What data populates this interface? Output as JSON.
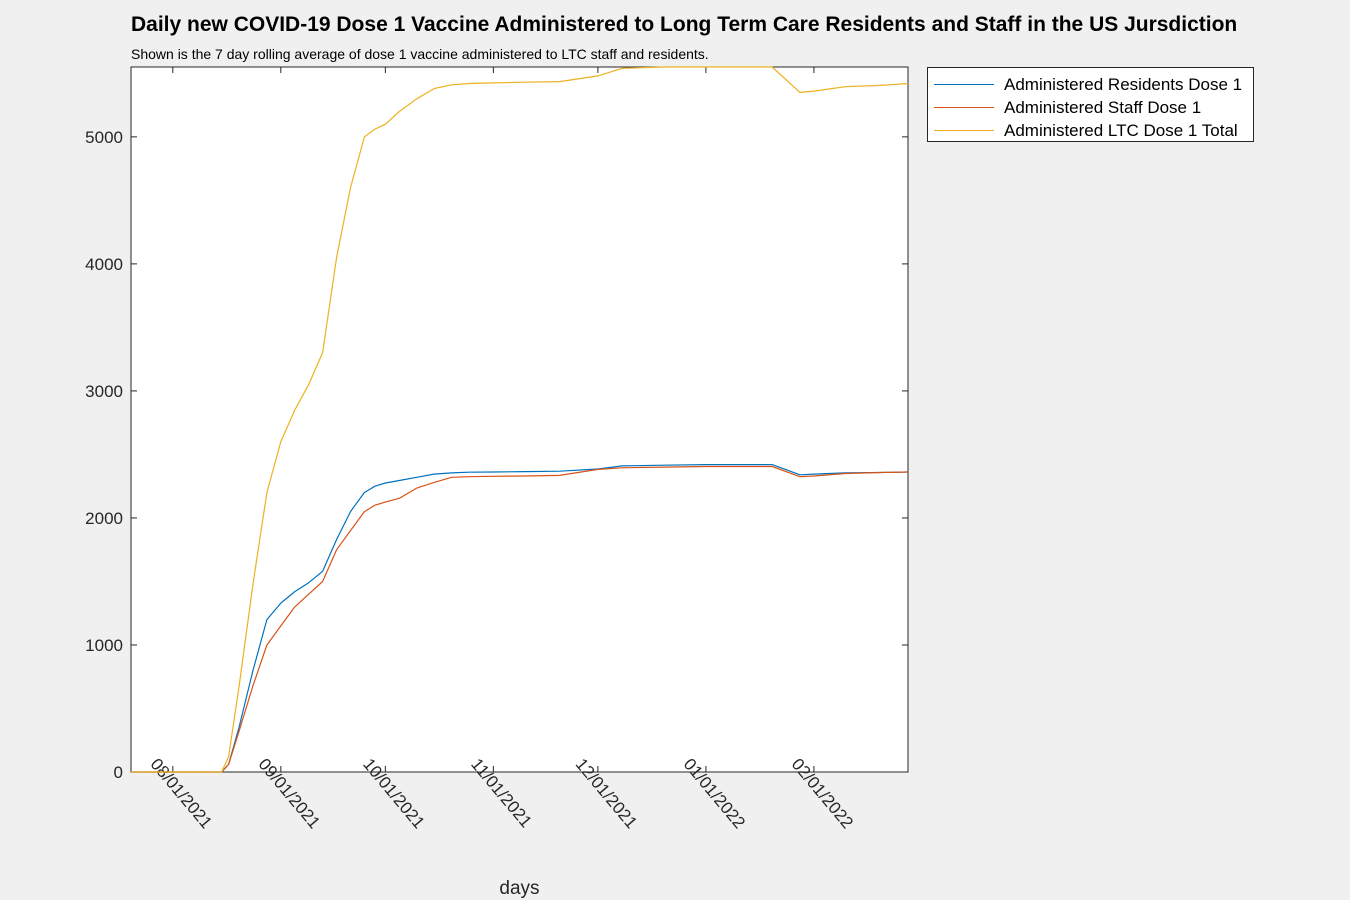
{
  "window": {
    "title": "Daily new COVID-19 Dose 1 Vaccine Administered to Long Term Care Residents and Staff in the US Jursdiction",
    "subtitle": "Shown is the 7 day rolling average of dose 1 vaccine administered to LTC staff and residents."
  },
  "chart_data": {
    "type": "line",
    "title": "Daily new COVID-19 Dose 1 Vaccine Administered to Long Term Care Residents and Staff in the US Jursdiction",
    "subtitle": "Shown is the 7 day rolling average of dose 1 vaccine administered to LTC staff and residents.",
    "xlabel": "days",
    "ylabel": "",
    "xlim": [
      "2021-07-20",
      "2022-02-28"
    ],
    "ylim": [
      0,
      5550
    ],
    "xticks": [
      "2021-08-01",
      "2021-09-01",
      "2021-10-01",
      "2021-11-01",
      "2021-12-01",
      "2022-01-01",
      "2022-02-01"
    ],
    "xtick_labels": [
      "08/01/2021",
      "09/01/2021",
      "10/01/2021",
      "11/01/2021",
      "12/01/2021",
      "01/01/2022",
      "02/01/2022"
    ],
    "yticks": [
      0,
      1000,
      2000,
      3000,
      4000,
      5000
    ],
    "ytick_labels": [
      "0",
      "1000",
      "2000",
      "3000",
      "4000",
      "5000"
    ],
    "grid": false,
    "legend_position": "outside-top-right",
    "x": [
      "2021-07-20",
      "2021-08-15",
      "2021-08-17",
      "2021-08-20",
      "2021-08-24",
      "2021-08-28",
      "2021-09-01",
      "2021-09-05",
      "2021-09-09",
      "2021-09-13",
      "2021-09-17",
      "2021-09-21",
      "2021-09-25",
      "2021-09-28",
      "2021-10-01",
      "2021-10-05",
      "2021-10-10",
      "2021-10-15",
      "2021-10-20",
      "2021-10-25",
      "2021-11-01",
      "2021-11-10",
      "2021-11-20",
      "2021-12-01",
      "2021-12-08",
      "2021-12-20",
      "2022-01-01",
      "2022-01-10",
      "2022-01-20",
      "2022-01-28",
      "2022-02-01",
      "2022-02-10",
      "2022-02-20",
      "2022-02-28"
    ],
    "series": [
      {
        "name": "Administered Residents Dose 1",
        "color": "#0072BD",
        "values": [
          0,
          0,
          60,
          350,
          800,
          1200,
          1330,
          1420,
          1490,
          1580,
          1830,
          2050,
          2200,
          2250,
          2275,
          2295,
          2320,
          2345,
          2355,
          2360,
          2362,
          2365,
          2368,
          2385,
          2410,
          2415,
          2420,
          2420,
          2420,
          2340,
          2345,
          2355,
          2358,
          2362
        ]
      },
      {
        "name": "Administered Staff Dose 1",
        "color": "#D95319",
        "values": [
          0,
          0,
          60,
          320,
          680,
          1000,
          1150,
          1300,
          1400,
          1500,
          1750,
          1900,
          2050,
          2100,
          2125,
          2155,
          2235,
          2280,
          2320,
          2325,
          2328,
          2330,
          2335,
          2382,
          2395,
          2400,
          2405,
          2405,
          2405,
          2325,
          2330,
          2350,
          2358,
          2362
        ]
      },
      {
        "name": "Administered LTC Dose 1 Total",
        "color": "#EDB120",
        "values": [
          0,
          0,
          120,
          670,
          1480,
          2200,
          2600,
          2850,
          3050,
          3300,
          4050,
          4600,
          5000,
          5060,
          5100,
          5200,
          5300,
          5380,
          5410,
          5420,
          5425,
          5430,
          5435,
          5480,
          5540,
          5550,
          5550,
          5550,
          5550,
          5350,
          5360,
          5395,
          5405,
          5420
        ]
      }
    ]
  }
}
